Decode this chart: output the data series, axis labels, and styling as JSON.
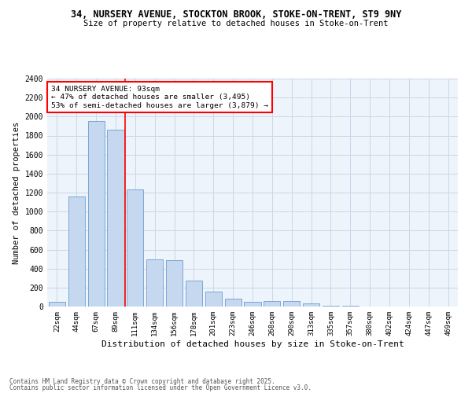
{
  "title_line1": "34, NURSERY AVENUE, STOCKTON BROOK, STOKE-ON-TRENT, ST9 9NY",
  "title_line2": "Size of property relative to detached houses in Stoke-on-Trent",
  "xlabel": "Distribution of detached houses by size in Stoke-on-Trent",
  "ylabel": "Number of detached properties",
  "categories": [
    "22sqm",
    "44sqm",
    "67sqm",
    "89sqm",
    "111sqm",
    "134sqm",
    "156sqm",
    "178sqm",
    "201sqm",
    "223sqm",
    "246sqm",
    "268sqm",
    "290sqm",
    "313sqm",
    "335sqm",
    "357sqm",
    "380sqm",
    "402sqm",
    "424sqm",
    "447sqm",
    "469sqm"
  ],
  "values": [
    50,
    1160,
    1950,
    1860,
    1230,
    500,
    490,
    270,
    155,
    80,
    50,
    60,
    55,
    30,
    10,
    5,
    3,
    2,
    1,
    1,
    1
  ],
  "bar_color": "#c5d8f0",
  "bar_edge_color": "#7aa8d4",
  "vline_color": "red",
  "vline_x": 3.5,
  "annotation_text": "34 NURSERY AVENUE: 93sqm\n← 47% of detached houses are smaller (3,495)\n53% of semi-detached houses are larger (3,879) →",
  "annotation_box_color": "white",
  "annotation_box_edge": "red",
  "ylim": [
    0,
    2400
  ],
  "yticks": [
    0,
    200,
    400,
    600,
    800,
    1000,
    1200,
    1400,
    1600,
    1800,
    2000,
    2200,
    2400
  ],
  "grid_color": "#c8d8e8",
  "bg_color": "#eef4fb",
  "footer_line1": "Contains HM Land Registry data © Crown copyright and database right 2025.",
  "footer_line2": "Contains public sector information licensed under the Open Government Licence v3.0."
}
